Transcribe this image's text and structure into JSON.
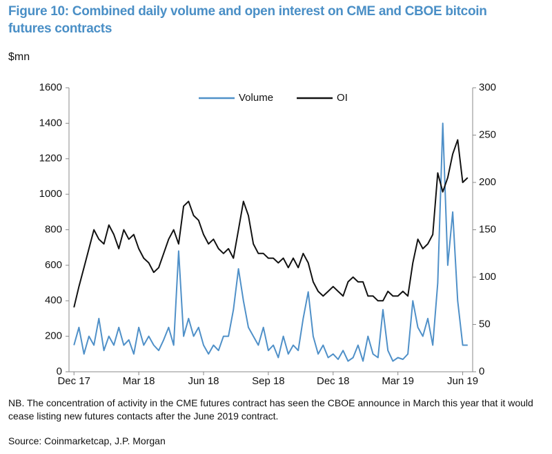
{
  "chart_data": {
    "type": "line",
    "title": "Figure 10: Combined daily volume and open interest on CME and CBOE bitcoin futures contracts",
    "y_label": "$mn",
    "note": "NB. The concentration of activity in the CME futures contract has seen the CBOE announce in March this year that it would cease listing new futures contacts after the June 2019 contract.",
    "source": "Source:  Coinmarketcap, J.P. Morgan",
    "legend": "top",
    "x": [
      0,
      1,
      2,
      3,
      4,
      5,
      6,
      7,
      8,
      9,
      10,
      11,
      12,
      13,
      14,
      15,
      16,
      17,
      18,
      19,
      20,
      21,
      22,
      23,
      24,
      25,
      26,
      27,
      28,
      29,
      30,
      31,
      32,
      33,
      34,
      35,
      36,
      37,
      38,
      39,
      40,
      41,
      42,
      43,
      44,
      45,
      46,
      47,
      48,
      49,
      50,
      51,
      52,
      53,
      54,
      55,
      56,
      57,
      58,
      59,
      60,
      61,
      62,
      63,
      64,
      65,
      66,
      67,
      68,
      69,
      70,
      71,
      72,
      73,
      74,
      75,
      76,
      77,
      78,
      79
    ],
    "xlim": [
      -1,
      80
    ],
    "xticks": [
      {
        "value": 0,
        "label": "Dec 17"
      },
      {
        "value": 13,
        "label": "Mar 18"
      },
      {
        "value": 26,
        "label": "Jun 18"
      },
      {
        "value": 39,
        "label": "Sep 18"
      },
      {
        "value": 52,
        "label": "Dec 18"
      },
      {
        "value": 65,
        "label": "Mar 19"
      },
      {
        "value": 78,
        "label": "Jun 19"
      }
    ],
    "ylim": [
      0,
      1600
    ],
    "yticks": [
      0,
      200,
      400,
      600,
      800,
      1000,
      1200,
      1400,
      1600
    ],
    "y2lim": [
      0,
      300
    ],
    "y2ticks": [
      0,
      50,
      100,
      150,
      200,
      250,
      300
    ],
    "series": [
      {
        "name": "Volume",
        "color": "#4f90c8",
        "values": [
          150,
          250,
          100,
          200,
          150,
          300,
          120,
          200,
          150,
          250,
          150,
          180,
          100,
          250,
          150,
          200,
          150,
          120,
          180,
          250,
          150,
          680,
          200,
          300,
          200,
          250,
          150,
          100,
          150,
          120,
          200,
          200,
          350,
          580,
          400,
          250,
          200,
          150,
          250,
          120,
          150,
          80,
          200,
          100,
          150,
          120,
          300,
          450,
          200,
          100,
          150,
          80,
          100,
          70,
          120,
          60,
          80,
          150,
          60,
          200,
          100,
          80,
          350,
          120,
          60,
          80,
          70,
          100,
          400,
          250,
          200,
          300,
          150,
          500,
          1400,
          600,
          900,
          400,
          150,
          150
        ]
      },
      {
        "name": "OI",
        "color": "#111111",
        "axis": "y2",
        "values": [
          68,
          90,
          110,
          130,
          150,
          140,
          135,
          155,
          145,
          130,
          150,
          140,
          145,
          130,
          120,
          115,
          105,
          110,
          125,
          140,
          150,
          135,
          175,
          180,
          165,
          160,
          145,
          135,
          140,
          130,
          125,
          130,
          120,
          150,
          180,
          165,
          135,
          125,
          125,
          120,
          120,
          115,
          120,
          110,
          120,
          110,
          125,
          115,
          95,
          85,
          80,
          85,
          90,
          85,
          80,
          95,
          100,
          95,
          95,
          80,
          80,
          75,
          75,
          85,
          80,
          80,
          85,
          80,
          115,
          140,
          130,
          135,
          145,
          210,
          190,
          205,
          230,
          245,
          200,
          205
        ]
      }
    ]
  }
}
